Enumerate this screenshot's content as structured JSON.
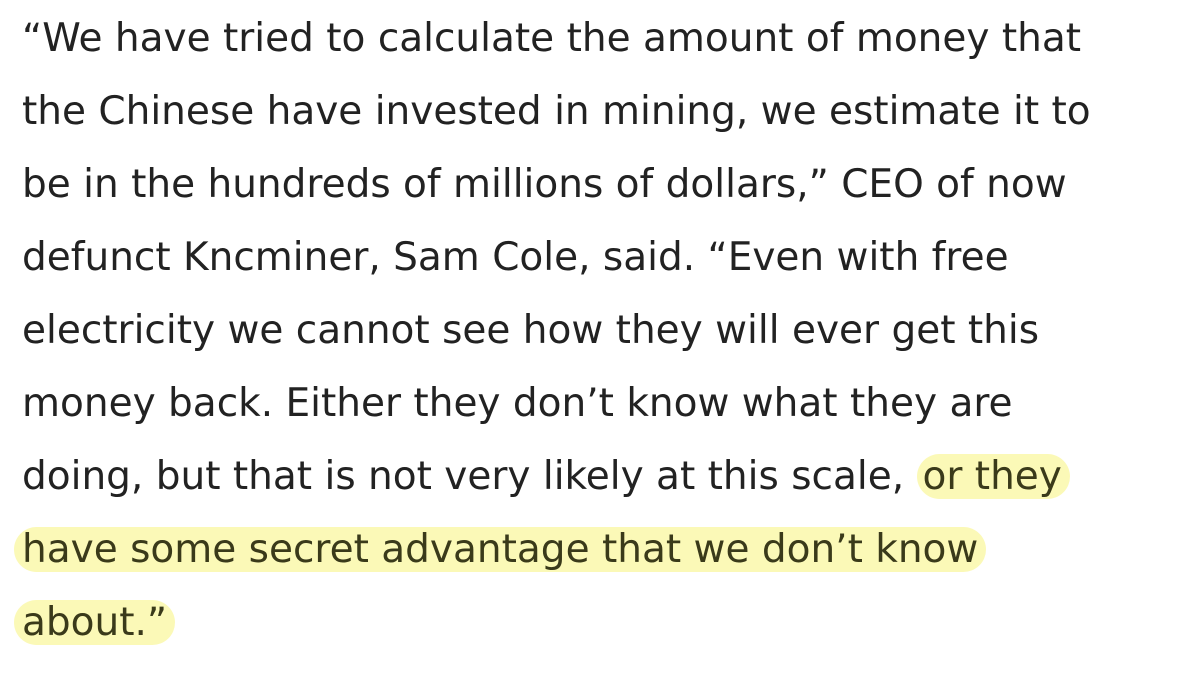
{
  "article": {
    "lines": [
      "“We have tried to calculate the amount of money that",
      "the Chinese have invested in mining, we estimate it to",
      "be in the hundreds of millions of dollars,” CEO of now",
      "defunct Kncminer, Sam Cole, said. “Even with free",
      "electricity we cannot see how they will ever get this",
      "money back. Either they don’t know what they are"
    ],
    "line7_plain": "doing, but that is not very likely at this scale,",
    "line7_highlight": "or they",
    "line8_highlight": "have some secret advantage that we don’t know",
    "line9_highlight": "about.”"
  },
  "colors": {
    "text": "#222222",
    "highlight": "#faf8aa",
    "highlight_text": "#3a3a1a"
  }
}
